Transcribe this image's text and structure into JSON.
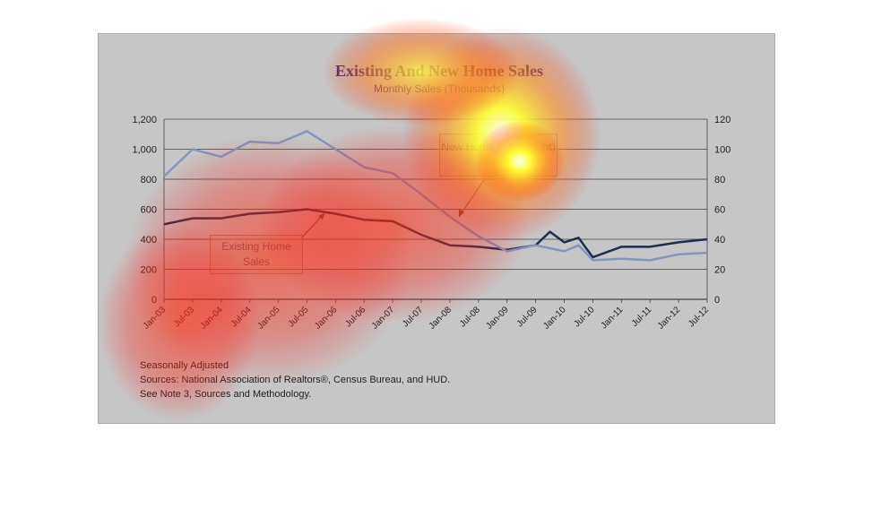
{
  "chart_data": {
    "type": "line",
    "title": "Existing And New Home Sales",
    "subtitle": "Monthly Sales (Thousands)",
    "x_tick_labels": [
      "Jan-03",
      "Jul-03",
      "Jan-04",
      "Jul-04",
      "Jan-05",
      "Jul-05",
      "Jan-06",
      "Jul-06",
      "Jan-07",
      "Jul-07",
      "Jan-08",
      "Jul-08",
      "Jan-09",
      "Jul-09",
      "Jan-10",
      "Jul-10",
      "Jan-11",
      "Jul-11",
      "Jan-12",
      "Jul-12"
    ],
    "y_left": {
      "range": [
        0,
        1200
      ],
      "ticks": [
        "0",
        "200",
        "400",
        "600",
        "800",
        "1,000",
        "1,200"
      ]
    },
    "y_right": {
      "range": [
        0,
        120
      ],
      "ticks": [
        "0",
        "20",
        "40",
        "60",
        "80",
        "100",
        "120"
      ]
    },
    "grid": "horizontal",
    "series": [
      {
        "label": "Existing Home Sales",
        "axis": "left",
        "color": "#1f2d50",
        "anchors": [
          [
            "Jan-03",
            500
          ],
          [
            "Jul-03",
            540
          ],
          [
            "Jan-04",
            540
          ],
          [
            "Jul-04",
            570
          ],
          [
            "Jan-05",
            580
          ],
          [
            "Jul-05",
            600
          ],
          [
            "Jan-06",
            570
          ],
          [
            "Jul-06",
            530
          ],
          [
            "Jan-07",
            520
          ],
          [
            "Jul-07",
            430
          ],
          [
            "Jan-08",
            360
          ],
          [
            "Jul-08",
            350
          ],
          [
            "Jan-09",
            330
          ],
          [
            "Jul-09",
            360
          ],
          [
            "Oct-09",
            450
          ],
          [
            "Jan-10",
            380
          ],
          [
            "Apr-10",
            410
          ],
          [
            "Jul-10",
            280
          ],
          [
            "Jan-11",
            350
          ],
          [
            "Jul-11",
            350
          ],
          [
            "Jan-12",
            380
          ],
          [
            "Jul-12",
            400
          ]
        ]
      },
      {
        "label": "New Home Sales (right)",
        "axis": "right",
        "color": "#8296be",
        "anchors": [
          [
            "Jan-03",
            82
          ],
          [
            "Jul-03",
            100
          ],
          [
            "Jan-04",
            95
          ],
          [
            "Jul-04",
            105
          ],
          [
            "Jan-05",
            104
          ],
          [
            "Jul-05",
            112
          ],
          [
            "Jan-06",
            100
          ],
          [
            "Jul-06",
            88
          ],
          [
            "Jan-07",
            84
          ],
          [
            "Jul-07",
            70
          ],
          [
            "Jan-08",
            55
          ],
          [
            "Jul-08",
            42
          ],
          [
            "Jan-09",
            32
          ],
          [
            "Jul-09",
            36
          ],
          [
            "Jan-10",
            32
          ],
          [
            "Apr-10",
            36
          ],
          [
            "Jul-10",
            26
          ],
          [
            "Jan-11",
            27
          ],
          [
            "Jul-11",
            26
          ],
          [
            "Jan-12",
            30
          ],
          [
            "Jul-12",
            31
          ]
        ]
      }
    ],
    "annotations": [
      "New Home Sales (right)",
      "Existing Home Sales"
    ]
  },
  "footnotes": [
    "Seasonally Adjusted",
    "Sources:  National Association of Realtors®, Census Bureau, and HUD.",
    "See Note 3, Sources and Methodology."
  ]
}
